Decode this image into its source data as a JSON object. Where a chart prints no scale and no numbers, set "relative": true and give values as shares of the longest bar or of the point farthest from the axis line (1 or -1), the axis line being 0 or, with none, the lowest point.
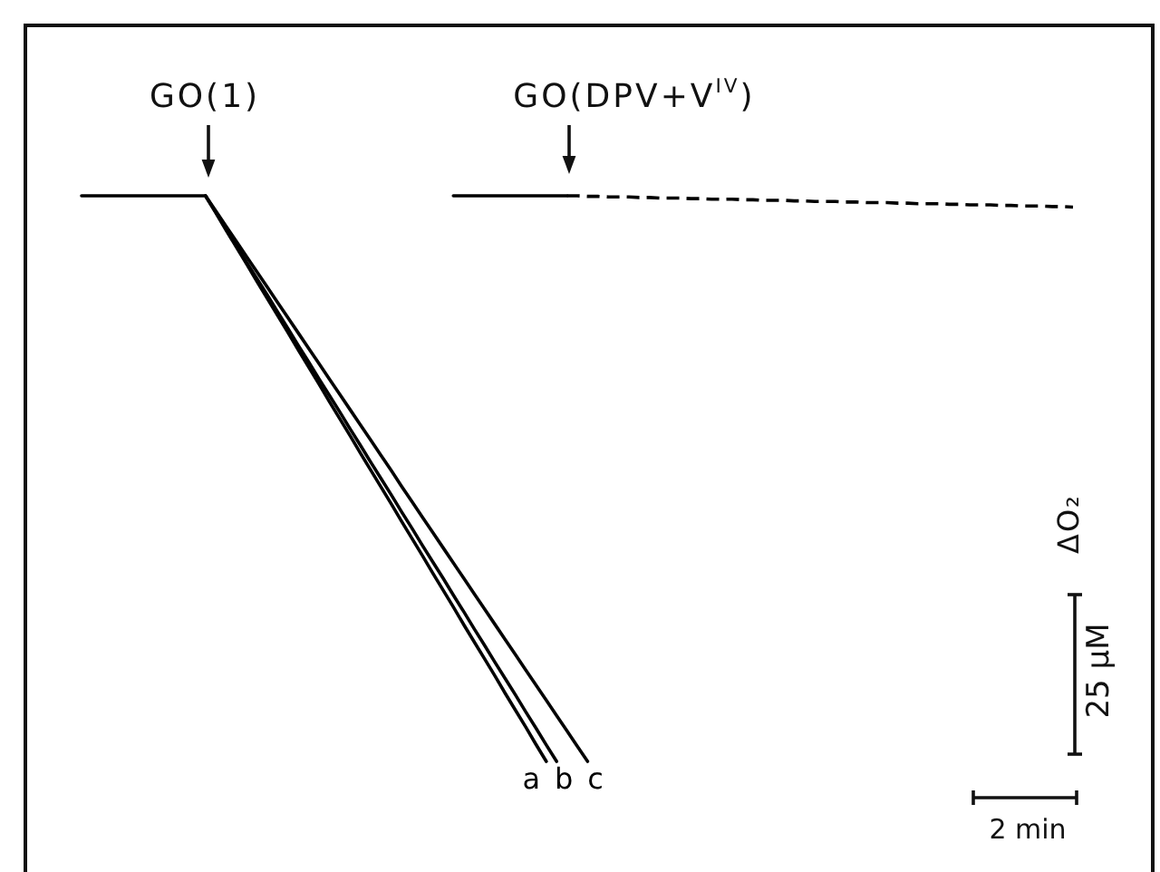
{
  "chart_data": {
    "type": "line",
    "relative": true,
    "categories": [
      null,
      null,
      null,
      null,
      null,
      null,
      null,
      null,
      null,
      null,
      null,
      null,
      null,
      null,
      null,
      null,
      null,
      null,
      null,
      null,
      null,
      null,
      null,
      null,
      null,
      null,
      null,
      null,
      null,
      null,
      null,
      null,
      null,
      null,
      null,
      null,
      null,
      null,
      null,
      null,
      null,
      null,
      null,
      null,
      null,
      null,
      null,
      null,
      null,
      null,
      null,
      null,
      null,
      null,
      null,
      null,
      null,
      null,
      null,
      null,
      null,
      null,
      null,
      null,
      null,
      null,
      null,
      null,
      null,
      null,
      null,
      null,
      null,
      null,
      null,
      null,
      null,
      null,
      null,
      null,
      null,
      null,
      null,
      null,
      null,
      null,
      null,
      null,
      null,
      null,
      null,
      null,
      null,
      null,
      null,
      null,
      null
    ],
    "series": [
      {
        "name": "a",
        "color": "#000000",
        "values": [
          1,
          1,
          1,
          1,
          1,
          1,
          1,
          1,
          1,
          1,
          1,
          1,
          1,
          0.97,
          0.939,
          0.909,
          0.879,
          0.848,
          0.818,
          0.788,
          0.758,
          0.727,
          0.697,
          0.667,
          0.636,
          0.606,
          0.576,
          0.545,
          0.515,
          0.485,
          0.455,
          0.424,
          0.394,
          0.364,
          0.333,
          0.303,
          0.273,
          0.242,
          0.212,
          0.182,
          0.152,
          0.121,
          0.091,
          0.061,
          0.03,
          0,
          null,
          null,
          null,
          null,
          null,
          null,
          null,
          null,
          null,
          null,
          null,
          null,
          null,
          null,
          null,
          null,
          null,
          null,
          null,
          null,
          null,
          null,
          null,
          null,
          null,
          null,
          null,
          null,
          null,
          null,
          null,
          null,
          null,
          null,
          null,
          null,
          null,
          null,
          null,
          null,
          null,
          null,
          null,
          null,
          null,
          null,
          null,
          null,
          null,
          null,
          null
        ]
      },
      {
        "name": "b",
        "color": "#000000",
        "values": [
          null,
          null,
          null,
          null,
          null,
          null,
          null,
          null,
          null,
          null,
          null,
          null,
          1,
          0.971,
          0.941,
          0.912,
          0.882,
          0.853,
          0.824,
          0.794,
          0.765,
          0.735,
          0.706,
          0.676,
          0.647,
          0.618,
          0.588,
          0.559,
          0.529,
          0.5,
          0.471,
          0.441,
          0.412,
          0.382,
          0.353,
          0.324,
          0.294,
          0.265,
          0.235,
          0.206,
          0.176,
          0.147,
          0.118,
          0.088,
          0.059,
          0.029,
          0,
          null,
          null,
          null,
          null,
          null,
          null,
          null,
          null,
          null,
          null,
          null,
          null,
          null,
          null,
          null,
          null,
          null,
          null,
          null,
          null,
          null,
          null,
          null,
          null,
          null,
          null,
          null,
          null,
          null,
          null,
          null,
          null,
          null,
          null,
          null,
          null,
          null,
          null,
          null,
          null,
          null,
          null,
          null,
          null,
          null,
          null,
          null,
          null,
          null,
          null
        ]
      },
      {
        "name": "c",
        "color": "#000000",
        "values": [
          null,
          null,
          null,
          null,
          null,
          null,
          null,
          null,
          null,
          null,
          null,
          null,
          1,
          0.973,
          0.946,
          0.919,
          0.892,
          0.865,
          0.838,
          0.811,
          0.784,
          0.757,
          0.73,
          0.703,
          0.676,
          0.649,
          0.622,
          0.595,
          0.568,
          0.541,
          0.514,
          0.486,
          0.459,
          0.432,
          0.405,
          0.378,
          0.351,
          0.324,
          0.297,
          0.27,
          0.243,
          0.216,
          0.189,
          0.162,
          0.135,
          0.108,
          0.081,
          0.054,
          0.027,
          0,
          null,
          null,
          null,
          null,
          null,
          null,
          null,
          null,
          null,
          null,
          null,
          null,
          null,
          null,
          null,
          null,
          null,
          null,
          null,
          null,
          null,
          null,
          null,
          null,
          null,
          null,
          null,
          null,
          null,
          null,
          null,
          null,
          null,
          null,
          null,
          null,
          null,
          null,
          null,
          null,
          null,
          null,
          null,
          null,
          null,
          null,
          null
        ]
      },
      {
        "color": "#000000",
        "values": [
          null,
          null,
          null,
          null,
          null,
          null,
          null,
          null,
          null,
          null,
          null,
          null,
          null,
          null,
          null,
          null,
          null,
          null,
          null,
          null,
          null,
          null,
          null,
          null,
          null,
          null,
          null,
          null,
          null,
          null,
          null,
          null,
          null,
          null,
          null,
          null,
          1,
          1,
          1,
          1,
          1,
          1,
          1,
          1,
          1,
          1,
          1,
          1,
          null,
          null,
          null,
          null,
          null,
          null,
          null,
          null,
          null,
          null,
          null,
          null,
          null,
          null,
          null,
          null,
          null,
          null,
          null,
          null,
          null,
          null,
          null,
          null,
          null,
          null,
          null,
          null,
          null,
          null,
          null,
          null,
          null,
          null,
          null,
          null,
          null,
          null,
          null,
          null,
          null,
          null,
          null,
          null,
          null,
          null,
          null,
          null,
          null
        ]
      },
      {
        "color": "#000000",
        "line_style": "dashed",
        "values": [
          null,
          null,
          null,
          null,
          null,
          null,
          null,
          null,
          null,
          null,
          null,
          null,
          null,
          null,
          null,
          null,
          null,
          null,
          null,
          null,
          null,
          null,
          null,
          null,
          null,
          null,
          null,
          null,
          null,
          null,
          null,
          null,
          null,
          null,
          null,
          null,
          null,
          null,
          null,
          null,
          null,
          null,
          null,
          null,
          null,
          null,
          null,
          1,
          1,
          0.999,
          0.999,
          0.998,
          0.998,
          0.998,
          0.997,
          0.997,
          0.996,
          0.996,
          0.996,
          0.995,
          0.995,
          0.994,
          0.994,
          0.994,
          0.993,
          0.993,
          0.992,
          0.992,
          0.992,
          0.991,
          0.991,
          0.99,
          0.99,
          0.99,
          0.989,
          0.989,
          0.988,
          0.988,
          0.988,
          0.987,
          0.987,
          0.986,
          0.986,
          0.986,
          0.985,
          0.985,
          0.984,
          0.984,
          0.984,
          0.983,
          0.983,
          0.982,
          0.982,
          0.982,
          0.981,
          0.981,
          0.98
        ]
      }
    ],
    "annotations": [
      "GO(1)",
      "GO(DPV+V$^{IV}$)",
      "ΔO₂",
      "25 μM",
      "2 min"
    ]
  }
}
